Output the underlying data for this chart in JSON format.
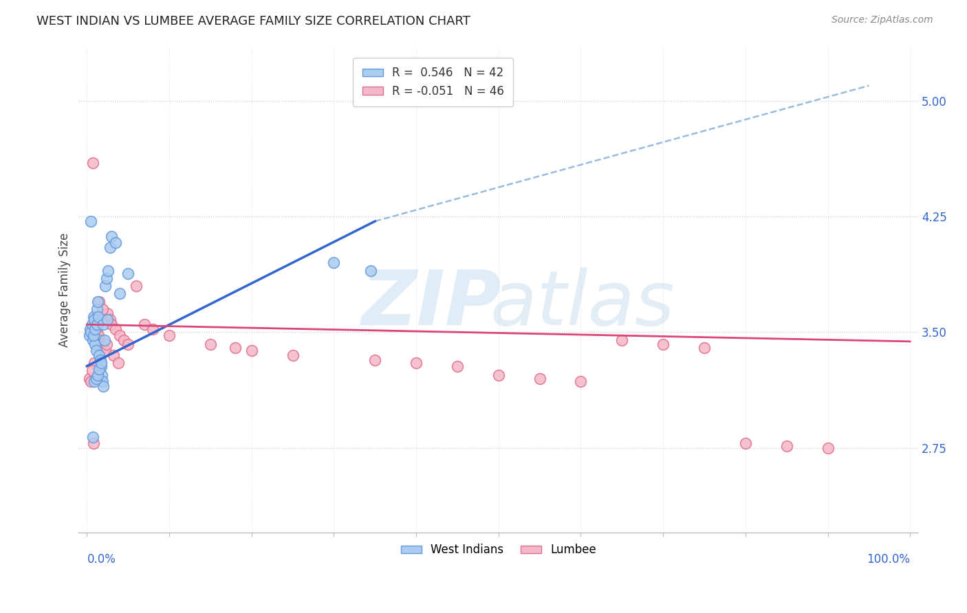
{
  "title": "WEST INDIAN VS LUMBEE AVERAGE FAMILY SIZE CORRELATION CHART",
  "source": "Source: ZipAtlas.com",
  "ylabel": "Average Family Size",
  "yticks": [
    2.75,
    3.5,
    4.25,
    5.0
  ],
  "ylim": [
    2.2,
    5.35
  ],
  "xlim": [
    -0.01,
    1.01
  ],
  "blue_color": "#aaccf0",
  "pink_color": "#f5b8c8",
  "blue_edge_color": "#6699dd",
  "pink_edge_color": "#e07090",
  "blue_line_color": "#3366cc",
  "pink_line_color": "#dd4477",
  "dashed_line_color": "#99bbdd",
  "wi_x": [
    0.003,
    0.004,
    0.005,
    0.006,
    0.007,
    0.008,
    0.009,
    0.01,
    0.011,
    0.012,
    0.013,
    0.014,
    0.015,
    0.016,
    0.017,
    0.018,
    0.019,
    0.02,
    0.021,
    0.022,
    0.024,
    0.026,
    0.028,
    0.03,
    0.005,
    0.007,
    0.009,
    0.011,
    0.013,
    0.015,
    0.017,
    0.008,
    0.01,
    0.012,
    0.014,
    0.02,
    0.025,
    0.035,
    0.04,
    0.05,
    0.3,
    0.345
  ],
  "wi_y": [
    3.48,
    3.52,
    3.5,
    3.55,
    3.45,
    3.6,
    3.58,
    3.42,
    3.38,
    3.65,
    3.7,
    3.56,
    3.35,
    3.32,
    3.28,
    3.22,
    3.18,
    3.15,
    3.45,
    3.8,
    3.85,
    3.9,
    4.05,
    4.12,
    4.22,
    2.82,
    3.18,
    3.2,
    3.22,
    3.26,
    3.3,
    3.48,
    3.52,
    3.55,
    3.6,
    3.55,
    3.58,
    4.08,
    3.75,
    3.88,
    3.95,
    3.9
  ],
  "lumbee_x": [
    0.003,
    0.005,
    0.007,
    0.009,
    0.01,
    0.012,
    0.014,
    0.016,
    0.018,
    0.02,
    0.022,
    0.025,
    0.028,
    0.03,
    0.035,
    0.04,
    0.045,
    0.05,
    0.06,
    0.07,
    0.08,
    0.1,
    0.15,
    0.18,
    0.2,
    0.25,
    0.35,
    0.4,
    0.45,
    0.5,
    0.55,
    0.6,
    0.65,
    0.7,
    0.75,
    0.8,
    0.85,
    0.9,
    0.006,
    0.008,
    0.011,
    0.015,
    0.019,
    0.024,
    0.032,
    0.038
  ],
  "lumbee_y": [
    3.2,
    3.18,
    4.6,
    3.3,
    3.55,
    3.52,
    3.48,
    3.45,
    3.42,
    3.4,
    3.38,
    3.62,
    3.58,
    3.55,
    3.52,
    3.48,
    3.45,
    3.42,
    3.8,
    3.55,
    3.52,
    3.48,
    3.42,
    3.4,
    3.38,
    3.35,
    3.32,
    3.3,
    3.28,
    3.22,
    3.2,
    3.18,
    3.45,
    3.42,
    3.4,
    2.78,
    2.76,
    2.75,
    3.25,
    2.78,
    3.6,
    3.7,
    3.65,
    3.42,
    3.35,
    3.3
  ],
  "blue_line_x0": 0.0,
  "blue_line_y0": 3.28,
  "blue_line_x1": 0.35,
  "blue_line_y1": 4.22,
  "pink_line_x0": 0.0,
  "pink_line_y0": 3.55,
  "pink_line_x1": 1.0,
  "pink_line_y1": 3.44,
  "dash_line_x0": 0.35,
  "dash_line_y0": 4.22,
  "dash_line_x1": 0.95,
  "dash_line_y1": 5.1
}
